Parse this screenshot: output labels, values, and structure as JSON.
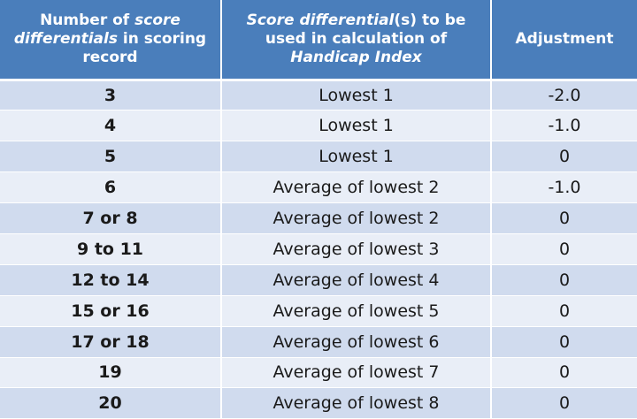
{
  "header": {
    "col1": {
      "before": "Number of ",
      "italic": "score differentials",
      "after": " in scoring record"
    },
    "col2": {
      "italic1": "Score differential",
      "middle": "(s) to be used in calculation of ",
      "italic2": "Handicap Index",
      "after": ""
    },
    "col3": {
      "label": "Adjustment"
    }
  },
  "rows": [
    {
      "count": "3",
      "used": "Lowest 1",
      "adjustment": "-2.0"
    },
    {
      "count": "4",
      "used": "Lowest 1",
      "adjustment": "-1.0"
    },
    {
      "count": "5",
      "used": "Lowest 1",
      "adjustment": "0"
    },
    {
      "count": "6",
      "used": "Average of lowest 2",
      "adjustment": "-1.0"
    },
    {
      "count": "7 or 8",
      "used": "Average of lowest 2",
      "adjustment": "0"
    },
    {
      "count": "9 to 11",
      "used": "Average of lowest 3",
      "adjustment": "0"
    },
    {
      "count": "12 to 14",
      "used": "Average of lowest 4",
      "adjustment": "0"
    },
    {
      "count": "15 or 16",
      "used": "Average of lowest 5",
      "adjustment": "0"
    },
    {
      "count": "17 or 18",
      "used": "Average of lowest 6",
      "adjustment": "0"
    },
    {
      "count": "19",
      "used": "Average of lowest 7",
      "adjustment": "0"
    },
    {
      "count": "20",
      "used": "Average of lowest 8",
      "adjustment": "0"
    }
  ],
  "colors": {
    "header_bg": "#4a7ebb",
    "header_text": "#ffffff",
    "row_odd": "#d0dbee",
    "row_even": "#e9eef7"
  }
}
